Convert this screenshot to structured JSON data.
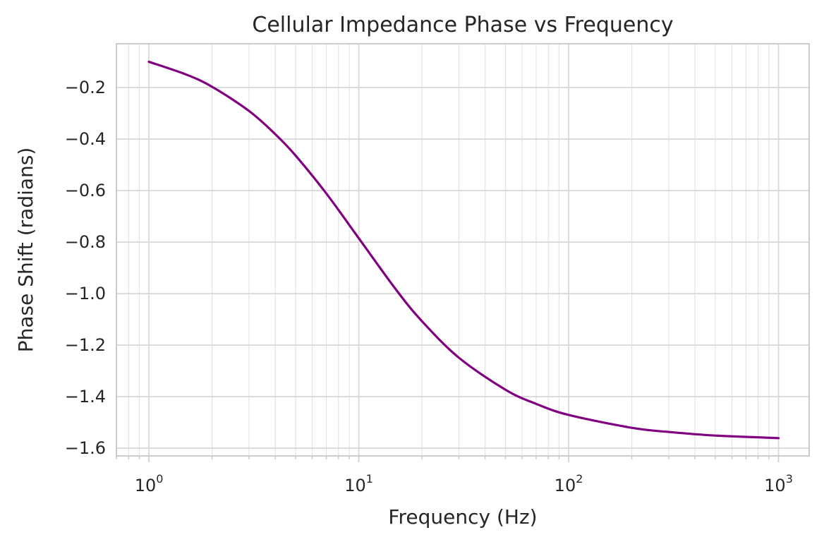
{
  "chart_data": {
    "type": "line",
    "title": "Cellular Impedance Phase vs Frequency",
    "xlabel": "Frequency (Hz)",
    "ylabel": "Phase Shift (radians)",
    "x_scale": "log",
    "xlim": [
      0.7,
      1400
    ],
    "ylim": [
      -1.63,
      -0.03
    ],
    "grid": true,
    "x_ticks": [
      {
        "value": 1,
        "base": "10",
        "exp": "0"
      },
      {
        "value": 10,
        "base": "10",
        "exp": "1"
      },
      {
        "value": 100,
        "base": "10",
        "exp": "2"
      },
      {
        "value": 1000,
        "base": "10",
        "exp": "3"
      }
    ],
    "y_ticks": [
      {
        "value": -0.2,
        "label": "−0.2"
      },
      {
        "value": -0.4,
        "label": "−0.4"
      },
      {
        "value": -0.6,
        "label": "−0.6"
      },
      {
        "value": -0.8,
        "label": "−0.8"
      },
      {
        "value": -1.0,
        "label": "−1.0"
      },
      {
        "value": -1.2,
        "label": "−1.2"
      },
      {
        "value": -1.4,
        "label": "−1.4"
      },
      {
        "value": -1.6,
        "label": "−1.6"
      }
    ],
    "series": [
      {
        "color": "#800080",
        "x": [
          1,
          1.5,
          2,
          3,
          4,
          5,
          7,
          10,
          15,
          20,
          30,
          50,
          70,
          100,
          200,
          300,
          500,
          1000
        ],
        "y": [
          -0.1,
          -0.149,
          -0.197,
          -0.291,
          -0.381,
          -0.464,
          -0.611,
          -0.785,
          -0.983,
          -1.107,
          -1.249,
          -1.373,
          -1.428,
          -1.471,
          -1.521,
          -1.537,
          -1.551,
          -1.561
        ]
      }
    ]
  }
}
